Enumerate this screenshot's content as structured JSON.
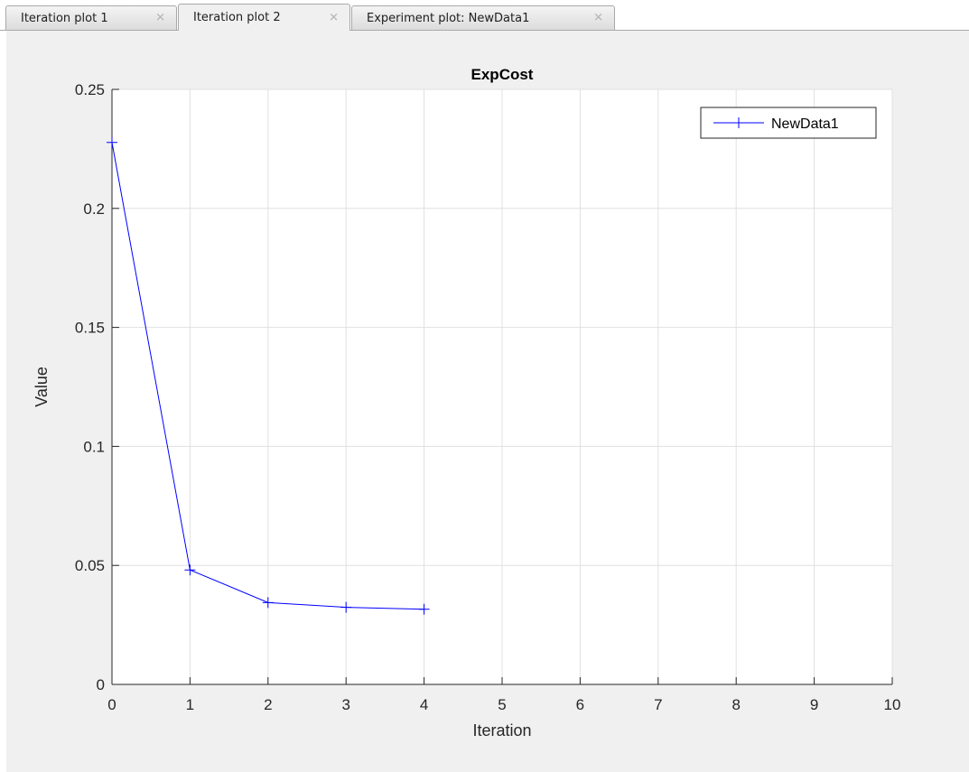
{
  "tabs": [
    {
      "label": "Iteration plot 1",
      "active": false
    },
    {
      "label": "Iteration plot 2",
      "active": true
    },
    {
      "label": "Experiment plot: NewData1",
      "active": false
    }
  ],
  "close_glyph": "✕",
  "colors": {
    "series": "#0000ff",
    "axes_background": "#ffffff",
    "figure_background": "#f0f0f0",
    "grid": "#e0e0e0"
  },
  "chart_data": {
    "type": "line",
    "title": "ExpCost",
    "xlabel": "Iteration",
    "ylabel": "Value",
    "xlim": [
      0,
      10
    ],
    "ylim": [
      0,
      0.25
    ],
    "xticks": [
      "0",
      "1",
      "2",
      "3",
      "4",
      "5",
      "6",
      "7",
      "8",
      "9",
      "10"
    ],
    "yticks": [
      "0",
      "0.05",
      "0.1",
      "0.15",
      "0.2",
      "0.25"
    ],
    "grid": true,
    "legend_position": "top-right",
    "marker": "plus",
    "series": [
      {
        "name": "NewData1",
        "x": [
          0,
          1,
          2,
          3,
          4
        ],
        "y": [
          0.2277,
          0.0481,
          0.0344,
          0.0324,
          0.0316
        ]
      }
    ]
  }
}
